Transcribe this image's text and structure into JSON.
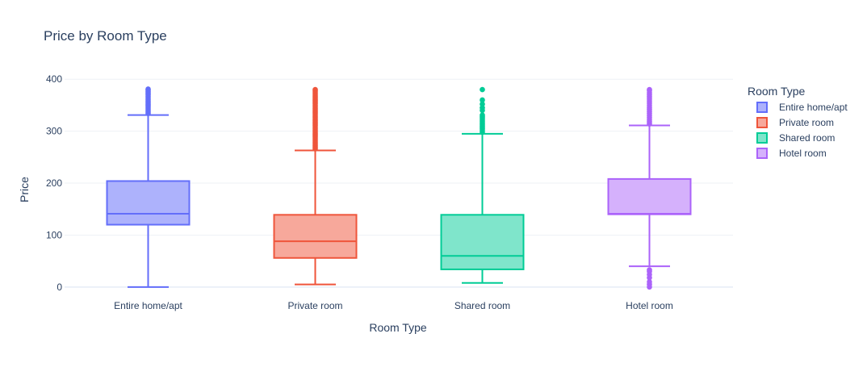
{
  "chart_data": {
    "type": "box",
    "title": "Price by Room Type",
    "xlabel": "Room Type",
    "ylabel": "Price",
    "ylim": [
      -8,
      405
    ],
    "yticks": [
      0,
      100,
      200,
      300,
      400
    ],
    "legend_title": "Room Type",
    "legend_position": "right",
    "series": [
      {
        "name": "Entire home/apt",
        "color": "#636efa",
        "fill": "#adb2fc",
        "min": 0,
        "q1": 120,
        "median": 141,
        "q3": 204,
        "max": 331,
        "outliers": [
          334,
          337,
          340,
          343,
          346,
          349,
          352,
          355,
          358,
          361,
          364,
          367,
          370,
          373,
          376,
          379,
          381
        ]
      },
      {
        "name": "Private room",
        "color": "#ef553b",
        "fill": "#f7a89b",
        "min": 5,
        "q1": 56,
        "median": 88,
        "q3": 139,
        "max": 263,
        "outliers": [
          266,
          269,
          272,
          275,
          278,
          281,
          284,
          287,
          290,
          293,
          296,
          299,
          302,
          305,
          308,
          311,
          314,
          317,
          320,
          323,
          326,
          329,
          332,
          335,
          338,
          341,
          344,
          347,
          350,
          353,
          356,
          359,
          362,
          365,
          368,
          371,
          374,
          377,
          380
        ]
      },
      {
        "name": "Shared room",
        "color": "#00cc96",
        "fill": "#7fe5cb",
        "min": 8,
        "q1": 34,
        "median": 60,
        "q3": 139,
        "max": 295,
        "outliers": [
          298,
          301,
          304,
          307,
          310,
          313,
          316,
          319,
          322,
          325,
          328,
          331,
          340,
          345,
          352,
          360,
          380
        ]
      },
      {
        "name": "Hotel room",
        "color": "#ab63fa",
        "fill": "#d5b1fc",
        "min": 40,
        "q1": 140,
        "median": 141,
        "q3": 208,
        "max": 311,
        "outliers": [
          0,
          5,
          10,
          18,
          24,
          30,
          33,
          314,
          318,
          322,
          326,
          330,
          334,
          338,
          342,
          346,
          350,
          354,
          358,
          362,
          366,
          370,
          374,
          378,
          380
        ]
      }
    ]
  }
}
